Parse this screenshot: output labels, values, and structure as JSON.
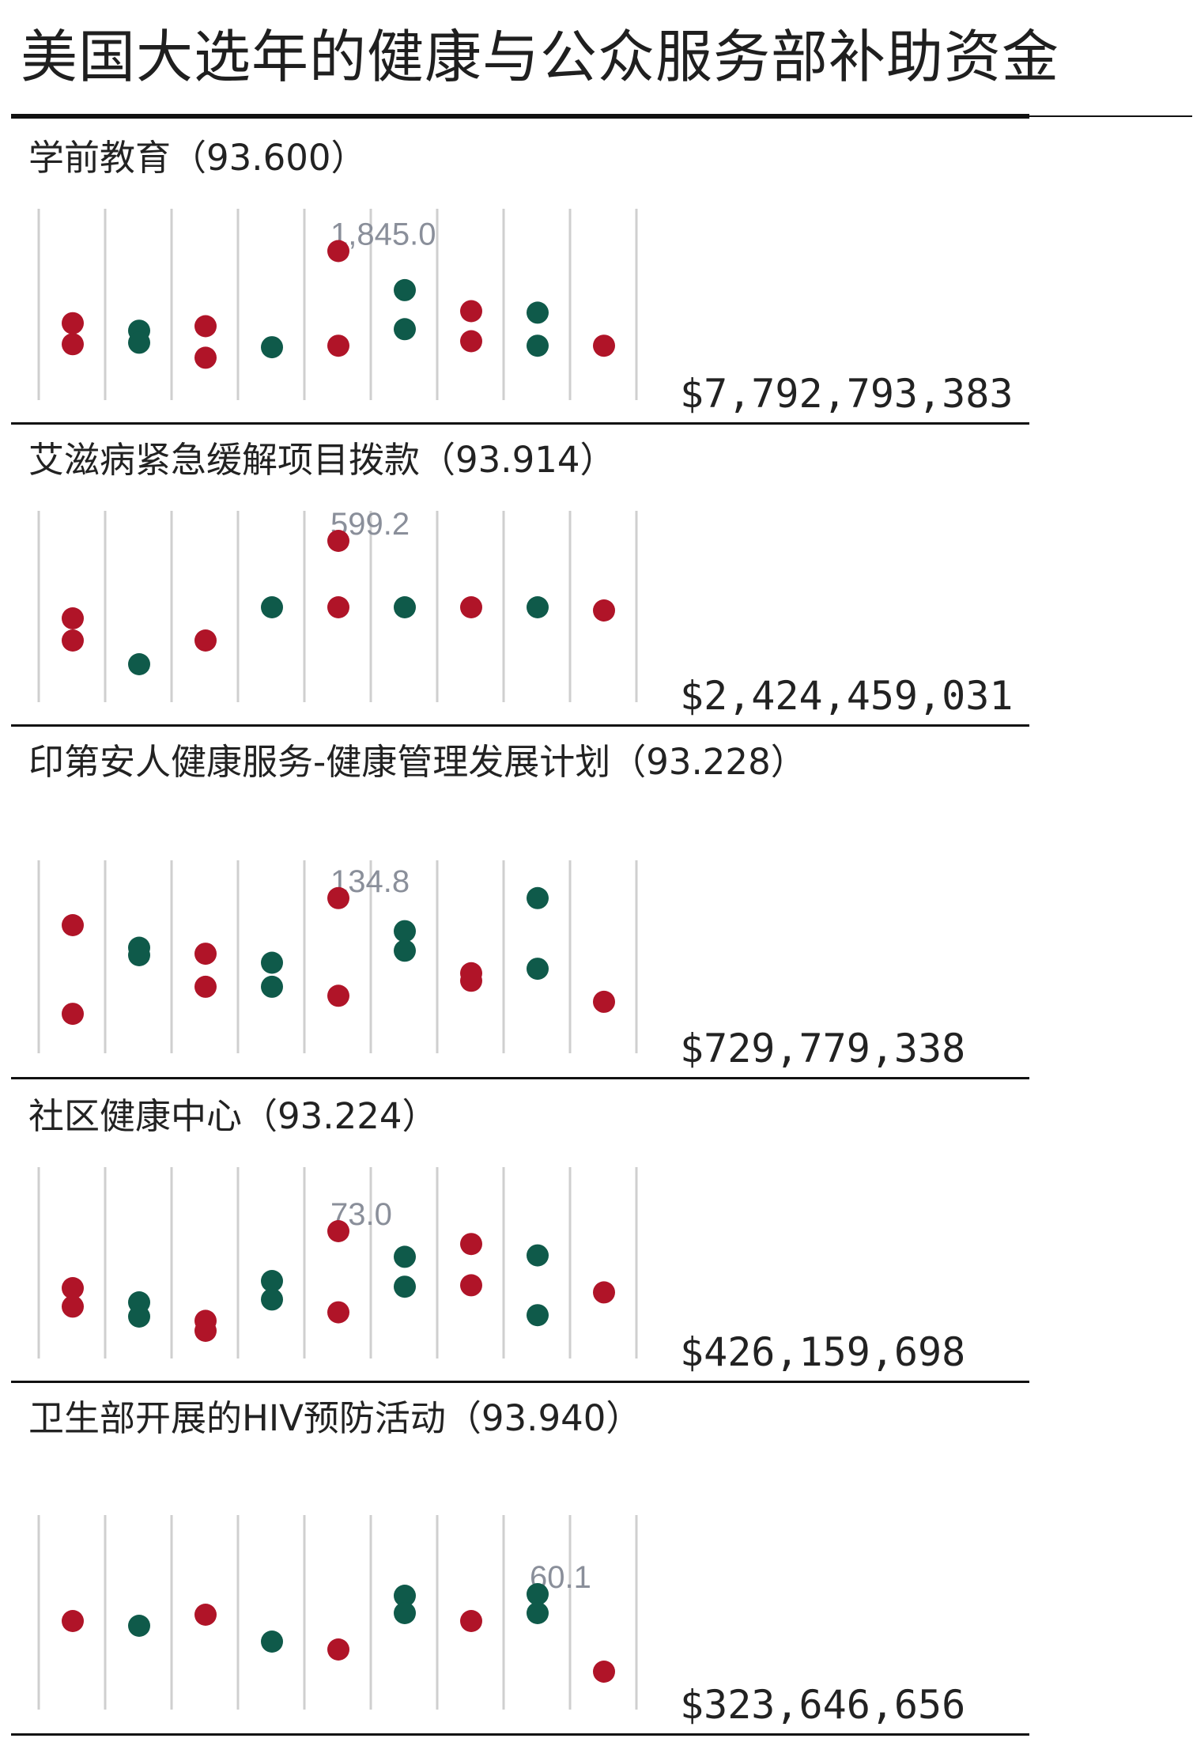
{
  "title": "美国大选年的健康与公众服务部补助资金",
  "colors": {
    "red": "#b01428",
    "green": "#0f5a4a",
    "gridline": "#cfcfcf",
    "label": "#8a8f9a"
  },
  "chart_data": [
    {
      "type": "scatter",
      "title": "学前教育（93.600）",
      "total": "$7,792,793,383",
      "max_label": "1,845.0",
      "max_label_column": 5,
      "columns": 9,
      "ylim": [
        0,
        1
      ],
      "points": [
        {
          "col": 1,
          "y": 0.47,
          "color": "red"
        },
        {
          "col": 1,
          "y": 0.33,
          "color": "red"
        },
        {
          "col": 2,
          "y": 0.42,
          "color": "green"
        },
        {
          "col": 2,
          "y": 0.34,
          "color": "green"
        },
        {
          "col": 3,
          "y": 0.45,
          "color": "red"
        },
        {
          "col": 3,
          "y": 0.24,
          "color": "red"
        },
        {
          "col": 4,
          "y": 0.31,
          "color": "green"
        },
        {
          "col": 5,
          "y": 0.95,
          "color": "red"
        },
        {
          "col": 5,
          "y": 0.32,
          "color": "red"
        },
        {
          "col": 6,
          "y": 0.69,
          "color": "green"
        },
        {
          "col": 6,
          "y": 0.43,
          "color": "green"
        },
        {
          "col": 7,
          "y": 0.55,
          "color": "red"
        },
        {
          "col": 7,
          "y": 0.35,
          "color": "red"
        },
        {
          "col": 8,
          "y": 0.54,
          "color": "green"
        },
        {
          "col": 8,
          "y": 0.32,
          "color": "green"
        },
        {
          "col": 9,
          "y": 0.32,
          "color": "red"
        }
      ]
    },
    {
      "type": "scatter",
      "title": "艾滋病紧急缓解项目拨款（93.914）",
      "total": "$2,424,459,031",
      "max_label": "599.2",
      "max_label_column": 5,
      "columns": 9,
      "ylim": [
        0,
        1
      ],
      "points": [
        {
          "col": 1,
          "y": 0.49,
          "color": "red"
        },
        {
          "col": 1,
          "y": 0.35,
          "color": "red"
        },
        {
          "col": 2,
          "y": 0.2,
          "color": "green"
        },
        {
          "col": 3,
          "y": 0.35,
          "color": "red"
        },
        {
          "col": 4,
          "y": 0.56,
          "color": "green"
        },
        {
          "col": 5,
          "y": 0.98,
          "color": "red"
        },
        {
          "col": 5,
          "y": 0.56,
          "color": "red"
        },
        {
          "col": 6,
          "y": 0.56,
          "color": "green"
        },
        {
          "col": 7,
          "y": 0.56,
          "color": "red"
        },
        {
          "col": 8,
          "y": 0.56,
          "color": "green"
        },
        {
          "col": 9,
          "y": 0.54,
          "color": "red"
        }
      ]
    },
    {
      "type": "scatter",
      "title": "印第安人健康服务-健康管理发展计划（93.228）",
      "total": "$729,779,338",
      "max_label": "134.8",
      "max_label_column": 5,
      "columns": 9,
      "ylim": [
        0,
        1
      ],
      "points": [
        {
          "col": 1,
          "y": 0.8,
          "color": "red"
        },
        {
          "col": 1,
          "y": 0.21,
          "color": "red"
        },
        {
          "col": 2,
          "y": 0.65,
          "color": "green"
        },
        {
          "col": 2,
          "y": 0.6,
          "color": "green"
        },
        {
          "col": 3,
          "y": 0.61,
          "color": "red"
        },
        {
          "col": 3,
          "y": 0.39,
          "color": "red"
        },
        {
          "col": 4,
          "y": 0.55,
          "color": "green"
        },
        {
          "col": 4,
          "y": 0.39,
          "color": "green"
        },
        {
          "col": 5,
          "y": 0.98,
          "color": "red"
        },
        {
          "col": 5,
          "y": 0.33,
          "color": "red"
        },
        {
          "col": 6,
          "y": 0.76,
          "color": "green"
        },
        {
          "col": 6,
          "y": 0.63,
          "color": "green"
        },
        {
          "col": 7,
          "y": 0.48,
          "color": "red"
        },
        {
          "col": 7,
          "y": 0.43,
          "color": "red"
        },
        {
          "col": 8,
          "y": 0.98,
          "color": "green"
        },
        {
          "col": 8,
          "y": 0.51,
          "color": "green"
        },
        {
          "col": 9,
          "y": 0.29,
          "color": "red"
        }
      ]
    },
    {
      "type": "scatter",
      "title": "社区健康中心（93.224）",
      "total": "$426,159,698",
      "max_label": "73.0",
      "max_label_column": 5,
      "columns": 9,
      "ylim": [
        0,
        1
      ],
      "points": [
        {
          "col": 1,
          "y": 0.45,
          "color": "red"
        },
        {
          "col": 1,
          "y": 0.32,
          "color": "red"
        },
        {
          "col": 2,
          "y": 0.35,
          "color": "green"
        },
        {
          "col": 2,
          "y": 0.25,
          "color": "green"
        },
        {
          "col": 3,
          "y": 0.22,
          "color": "red"
        },
        {
          "col": 3,
          "y": 0.15,
          "color": "red"
        },
        {
          "col": 4,
          "y": 0.5,
          "color": "green"
        },
        {
          "col": 4,
          "y": 0.37,
          "color": "green"
        },
        {
          "col": 5,
          "y": 0.85,
          "color": "red"
        },
        {
          "col": 5,
          "y": 0.28,
          "color": "red"
        },
        {
          "col": 6,
          "y": 0.67,
          "color": "green"
        },
        {
          "col": 6,
          "y": 0.46,
          "color": "green"
        },
        {
          "col": 7,
          "y": 0.76,
          "color": "red"
        },
        {
          "col": 7,
          "y": 0.47,
          "color": "red"
        },
        {
          "col": 8,
          "y": 0.68,
          "color": "green"
        },
        {
          "col": 8,
          "y": 0.26,
          "color": "green"
        },
        {
          "col": 9,
          "y": 0.42,
          "color": "red"
        }
      ]
    },
    {
      "type": "scatter",
      "title": "卫生部开展的HIV预防活动（93.940）",
      "total": "$323,646,656",
      "max_label": "60.1",
      "max_label_column": 8,
      "columns": 9,
      "ylim": [
        0,
        1
      ],
      "points": [
        {
          "col": 1,
          "y": 0.56,
          "color": "red"
        },
        {
          "col": 2,
          "y": 0.53,
          "color": "green"
        },
        {
          "col": 3,
          "y": 0.6,
          "color": "red"
        },
        {
          "col": 4,
          "y": 0.43,
          "color": "green"
        },
        {
          "col": 5,
          "y": 0.38,
          "color": "red"
        },
        {
          "col": 6,
          "y": 0.72,
          "color": "green"
        },
        {
          "col": 6,
          "y": 0.61,
          "color": "green"
        },
        {
          "col": 7,
          "y": 0.56,
          "color": "red"
        },
        {
          "col": 8,
          "y": 0.73,
          "color": "green"
        },
        {
          "col": 8,
          "y": 0.61,
          "color": "green"
        },
        {
          "col": 9,
          "y": 0.24,
          "color": "red"
        }
      ]
    }
  ]
}
